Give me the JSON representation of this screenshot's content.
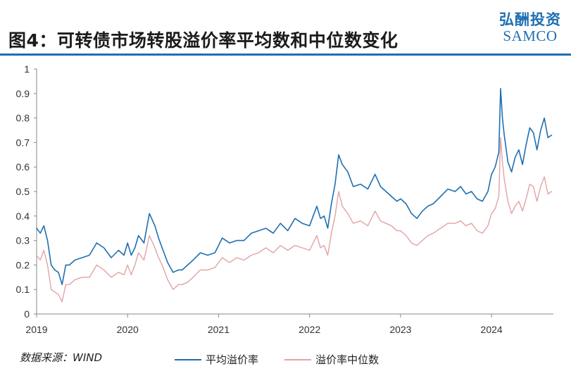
{
  "header": {
    "title": "图4：可转债市场转股溢价率平均数和中位数变化",
    "brand_cn": "弘酬投资",
    "brand_en": "SAMCO"
  },
  "footer": {
    "source": "数据来源：WIND"
  },
  "colors": {
    "mean": "#1f6fb2",
    "median": "#e3a3a5",
    "axis": "#888888",
    "brand": "#1f6fb2"
  },
  "chart_data": {
    "type": "line",
    "title": "",
    "xlabel": "",
    "ylabel": "",
    "xlim": [
      2019.0,
      2024.68
    ],
    "ylim": [
      0,
      1
    ],
    "yticks": [
      0,
      0.1,
      0.2,
      0.3,
      0.4,
      0.5,
      0.6,
      0.7,
      0.8,
      0.9,
      1
    ],
    "ytick_labels": [
      "0",
      "0.1",
      "0.2",
      "0.3",
      "0.4",
      "0.5",
      "0.6",
      "0.7",
      "0.8",
      "0.9",
      "1"
    ],
    "xticks": [
      2019,
      2020,
      2021,
      2022,
      2023,
      2024
    ],
    "xtick_labels": [
      "2019",
      "2020",
      "2021",
      "2022",
      "2023",
      "2024"
    ],
    "grid": false,
    "legend_position": "bottom",
    "series": [
      {
        "name": "平均溢价率",
        "color": "#1f6fb2",
        "x": [
          2019.0,
          2019.04,
          2019.08,
          2019.12,
          2019.16,
          2019.2,
          2019.24,
          2019.28,
          2019.32,
          2019.36,
          2019.42,
          2019.5,
          2019.58,
          2019.66,
          2019.74,
          2019.82,
          2019.9,
          2019.96,
          2020.0,
          2020.04,
          2020.08,
          2020.12,
          2020.18,
          2020.24,
          2020.3,
          2020.34,
          2020.38,
          2020.44,
          2020.5,
          2020.56,
          2020.6,
          2020.66,
          2020.72,
          2020.8,
          2020.88,
          2020.96,
          2021.04,
          2021.12,
          2021.2,
          2021.28,
          2021.36,
          2021.44,
          2021.52,
          2021.6,
          2021.68,
          2021.76,
          2021.84,
          2021.92,
          2022.0,
          2022.04,
          2022.08,
          2022.12,
          2022.16,
          2022.2,
          2022.24,
          2022.28,
          2022.32,
          2022.36,
          2022.42,
          2022.48,
          2022.56,
          2022.64,
          2022.72,
          2022.78,
          2022.84,
          2022.9,
          2022.96,
          2023.0,
          2023.06,
          2023.12,
          2023.18,
          2023.24,
          2023.3,
          2023.36,
          2023.44,
          2023.52,
          2023.6,
          2023.66,
          2023.72,
          2023.78,
          2023.84,
          2023.9,
          2023.96,
          2024.0,
          2024.04,
          2024.08,
          2024.1,
          2024.12,
          2024.14,
          2024.18,
          2024.22,
          2024.26,
          2024.3,
          2024.34,
          2024.38,
          2024.42,
          2024.46,
          2024.5,
          2024.54,
          2024.58,
          2024.62,
          2024.66
        ],
        "y": [
          0.35,
          0.33,
          0.36,
          0.3,
          0.2,
          0.18,
          0.17,
          0.12,
          0.2,
          0.2,
          0.22,
          0.23,
          0.24,
          0.29,
          0.27,
          0.23,
          0.26,
          0.24,
          0.29,
          0.24,
          0.27,
          0.32,
          0.29,
          0.41,
          0.36,
          0.31,
          0.27,
          0.21,
          0.17,
          0.18,
          0.18,
          0.2,
          0.22,
          0.25,
          0.24,
          0.25,
          0.31,
          0.29,
          0.3,
          0.3,
          0.33,
          0.34,
          0.35,
          0.33,
          0.37,
          0.34,
          0.39,
          0.37,
          0.36,
          0.4,
          0.44,
          0.39,
          0.4,
          0.35,
          0.45,
          0.53,
          0.65,
          0.61,
          0.58,
          0.52,
          0.53,
          0.51,
          0.57,
          0.52,
          0.5,
          0.48,
          0.46,
          0.47,
          0.45,
          0.41,
          0.39,
          0.42,
          0.44,
          0.45,
          0.48,
          0.51,
          0.5,
          0.52,
          0.49,
          0.5,
          0.47,
          0.46,
          0.5,
          0.57,
          0.6,
          0.66,
          0.92,
          0.8,
          0.73,
          0.62,
          0.58,
          0.64,
          0.67,
          0.61,
          0.69,
          0.76,
          0.74,
          0.67,
          0.75,
          0.8,
          0.72,
          0.73
        ]
      },
      {
        "name": "溢价率中位数",
        "color": "#e3a3a5",
        "x": [
          2019.0,
          2019.04,
          2019.08,
          2019.12,
          2019.16,
          2019.2,
          2019.24,
          2019.28,
          2019.32,
          2019.36,
          2019.42,
          2019.5,
          2019.58,
          2019.66,
          2019.74,
          2019.82,
          2019.9,
          2019.96,
          2020.0,
          2020.04,
          2020.08,
          2020.12,
          2020.18,
          2020.24,
          2020.3,
          2020.34,
          2020.38,
          2020.44,
          2020.5,
          2020.56,
          2020.6,
          2020.66,
          2020.72,
          2020.8,
          2020.88,
          2020.96,
          2021.04,
          2021.12,
          2021.2,
          2021.28,
          2021.36,
          2021.44,
          2021.52,
          2021.6,
          2021.68,
          2021.76,
          2021.84,
          2021.92,
          2022.0,
          2022.04,
          2022.08,
          2022.12,
          2022.16,
          2022.2,
          2022.24,
          2022.28,
          2022.32,
          2022.36,
          2022.42,
          2022.48,
          2022.56,
          2022.64,
          2022.72,
          2022.78,
          2022.84,
          2022.9,
          2022.96,
          2023.0,
          2023.06,
          2023.12,
          2023.18,
          2023.24,
          2023.3,
          2023.36,
          2023.44,
          2023.52,
          2023.6,
          2023.66,
          2023.72,
          2023.78,
          2023.84,
          2023.9,
          2023.96,
          2024.0,
          2024.04,
          2024.08,
          2024.1,
          2024.12,
          2024.14,
          2024.18,
          2024.22,
          2024.26,
          2024.3,
          2024.34,
          2024.38,
          2024.42,
          2024.46,
          2024.5,
          2024.54,
          2024.58,
          2024.62,
          2024.66
        ],
        "y": [
          0.24,
          0.22,
          0.26,
          0.2,
          0.1,
          0.09,
          0.08,
          0.05,
          0.12,
          0.12,
          0.14,
          0.15,
          0.15,
          0.2,
          0.18,
          0.15,
          0.17,
          0.16,
          0.2,
          0.16,
          0.2,
          0.25,
          0.22,
          0.32,
          0.27,
          0.23,
          0.2,
          0.14,
          0.1,
          0.12,
          0.12,
          0.13,
          0.15,
          0.18,
          0.18,
          0.19,
          0.23,
          0.21,
          0.23,
          0.22,
          0.24,
          0.25,
          0.27,
          0.25,
          0.28,
          0.26,
          0.28,
          0.27,
          0.26,
          0.29,
          0.32,
          0.27,
          0.28,
          0.24,
          0.33,
          0.4,
          0.5,
          0.44,
          0.41,
          0.37,
          0.38,
          0.36,
          0.42,
          0.38,
          0.37,
          0.36,
          0.34,
          0.34,
          0.32,
          0.29,
          0.28,
          0.3,
          0.32,
          0.33,
          0.35,
          0.37,
          0.37,
          0.38,
          0.36,
          0.37,
          0.34,
          0.33,
          0.36,
          0.41,
          0.43,
          0.48,
          0.72,
          0.62,
          0.55,
          0.46,
          0.41,
          0.44,
          0.46,
          0.42,
          0.47,
          0.53,
          0.52,
          0.46,
          0.52,
          0.56,
          0.49,
          0.5
        ]
      }
    ]
  }
}
